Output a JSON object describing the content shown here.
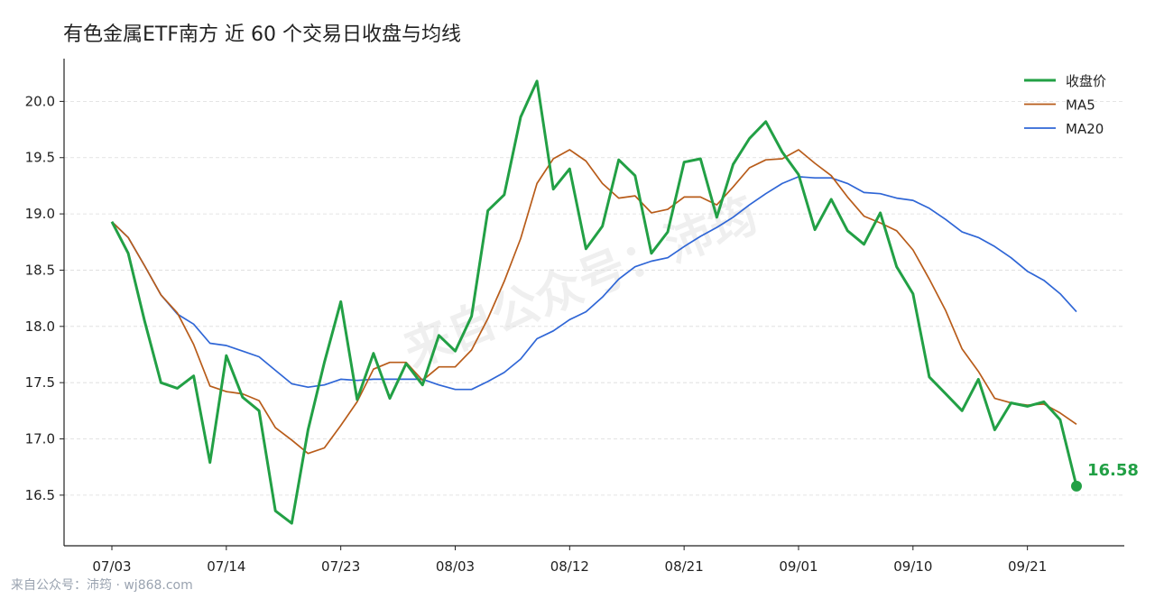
{
  "chart_data": {
    "type": "line",
    "title": "有色金属ETF南方 近 60 个交易日收盘与均线",
    "watermark": "来自公众号：沛筠",
    "footer": "来自公众号：沛筠 · wj868.com",
    "categories": [
      "07/03",
      null,
      null,
      null,
      null,
      null,
      null,
      "07/14",
      null,
      null,
      null,
      null,
      null,
      null,
      "07/23",
      null,
      null,
      null,
      null,
      null,
      null,
      "08/03",
      null,
      null,
      null,
      null,
      null,
      null,
      "08/12",
      null,
      null,
      null,
      null,
      null,
      null,
      "08/21",
      null,
      null,
      null,
      null,
      null,
      null,
      "09/01",
      null,
      null,
      null,
      null,
      null,
      null,
      "09/10",
      null,
      null,
      null,
      null,
      null,
      null,
      "09/21",
      null,
      null,
      null
    ],
    "series": [
      {
        "name": "收盘价",
        "color": "#22a045",
        "width": 3,
        "values": [
          18.93,
          18.65,
          18.05,
          17.5,
          17.45,
          17.56,
          16.79,
          17.74,
          17.37,
          17.25,
          16.36,
          16.25,
          17.08,
          17.68,
          18.22,
          17.35,
          17.76,
          17.36,
          17.67,
          17.48,
          17.92,
          17.78,
          18.09,
          19.03,
          19.17,
          19.86,
          20.18,
          19.22,
          19.4,
          18.69,
          18.89,
          19.48,
          19.34,
          18.65,
          18.84,
          19.46,
          19.49,
          18.97,
          19.44,
          19.67,
          19.82,
          19.55,
          19.35,
          18.86,
          19.13,
          18.85,
          18.73,
          19.01,
          18.53,
          18.29,
          17.55,
          17.4,
          17.25,
          17.53,
          17.08,
          17.32,
          17.29,
          17.33,
          17.17,
          16.58
        ]
      },
      {
        "name": "MA5",
        "color": "#b85c1a",
        "width": 1.7,
        "values": [
          18.93,
          18.79,
          18.54,
          18.28,
          18.12,
          17.84,
          17.47,
          17.42,
          17.4,
          17.34,
          17.1,
          16.99,
          16.87,
          16.92,
          17.12,
          17.33,
          17.62,
          17.68,
          17.68,
          17.52,
          17.64,
          17.64,
          17.79,
          18.07,
          18.4,
          18.78,
          19.27,
          19.49,
          19.57,
          19.47,
          19.27,
          19.14,
          19.16,
          19.01,
          19.04,
          19.15,
          19.15,
          19.08,
          19.24,
          19.41,
          19.48,
          19.49,
          19.57,
          19.45,
          19.34,
          19.15,
          18.98,
          18.92,
          18.85,
          18.68,
          18.42,
          18.14,
          17.8,
          17.6,
          17.36,
          17.32,
          17.3,
          17.31,
          17.23,
          17.13
        ]
      },
      {
        "name": "MA20",
        "color": "#2f66d6",
        "width": 1.7,
        "values": [
          18.93,
          18.79,
          18.54,
          18.28,
          18.11,
          18.02,
          17.85,
          17.83,
          17.78,
          17.73,
          17.61,
          17.49,
          17.46,
          17.48,
          17.53,
          17.52,
          17.53,
          17.53,
          17.53,
          17.53,
          17.48,
          17.44,
          17.44,
          17.51,
          17.59,
          17.71,
          17.89,
          17.96,
          18.06,
          18.13,
          18.26,
          18.42,
          18.53,
          18.58,
          18.61,
          18.71,
          18.8,
          18.88,
          18.97,
          19.08,
          19.18,
          19.27,
          19.33,
          19.32,
          19.32,
          19.27,
          19.19,
          19.18,
          19.14,
          19.12,
          19.05,
          18.95,
          18.84,
          18.79,
          18.71,
          18.61,
          18.49,
          18.41,
          18.29,
          18.13
        ]
      }
    ],
    "ylim": [
      16.05,
      20.38
    ],
    "yticks": [
      16.5,
      {
        "value": 17.0,
        "label": "17.0"
      },
      17.5,
      {
        "value": 18.0,
        "label": "18.0"
      },
      18.5,
      {
        "value": 19.0,
        "label": "19.0"
      },
      19.5,
      {
        "value": 20.0,
        "label": "20.0"
      }
    ],
    "grid": true,
    "legend": "upper right",
    "highlight_last": true
  }
}
